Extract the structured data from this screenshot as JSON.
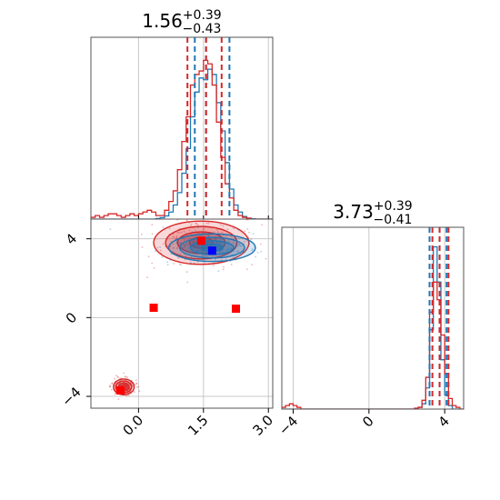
{
  "chart_data": [
    {
      "panel": "marginal-x",
      "type": "step-histogram",
      "title": {
        "main": "1.56",
        "sup": "+0.39",
        "sub": "−0.43"
      },
      "xlim": [
        -1.1,
        3.1
      ],
      "grid": true,
      "colors": {
        "blue": "#1f77b4",
        "red": "#d62728"
      },
      "bins": [
        -1.1,
        -1.0,
        -0.9,
        -0.8,
        -0.7,
        -0.6,
        -0.5,
        -0.4,
        -0.3,
        -0.2,
        -0.1,
        0.0,
        0.1,
        0.2,
        0.3,
        0.4,
        0.5,
        0.6,
        0.7,
        0.8,
        0.9,
        1.0,
        1.1,
        1.2,
        1.3,
        1.4,
        1.5,
        1.6,
        1.7,
        1.8,
        1.9,
        2.0,
        2.1,
        2.2,
        2.3,
        2.4,
        2.5,
        2.6,
        2.7,
        2.8,
        2.9,
        3.0,
        3.1
      ],
      "series": [
        {
          "color": "blue",
          "values": [
            0,
            0,
            0,
            0,
            0,
            0,
            0,
            0,
            0,
            0,
            0,
            0,
            0,
            0,
            0,
            0.003,
            0.008,
            0.018,
            0.04,
            0.08,
            0.15,
            0.26,
            0.4,
            0.58,
            0.72,
            0.8,
            0.79,
            0.85,
            0.82,
            0.66,
            0.5,
            0.32,
            0.17,
            0.08,
            0.04,
            0.015,
            0.005,
            0.002,
            0,
            0,
            0,
            0
          ]
        },
        {
          "color": "red",
          "values": [
            0.01,
            0.02,
            0.01,
            0.02,
            0.03,
            0.03,
            0.02,
            0.01,
            0.02,
            0.03,
            0.02,
            0.03,
            0.04,
            0.05,
            0.04,
            0.02,
            0.02,
            0.05,
            0.1,
            0.16,
            0.28,
            0.44,
            0.58,
            0.76,
            0.82,
            0.84,
            0.9,
            0.88,
            0.76,
            0.55,
            0.35,
            0.2,
            0.12,
            0.05,
            0.02,
            0.01,
            0.005,
            0,
            0,
            0,
            0,
            0
          ]
        }
      ],
      "quantiles": [
        {
          "color": "blue",
          "x": [
            1.3,
            1.56,
            2.1
          ]
        },
        {
          "color": "red",
          "x": [
            1.13,
            1.56,
            1.92
          ]
        }
      ]
    },
    {
      "panel": "joint",
      "type": "contour-scatter",
      "xlim": [
        -1.1,
        3.1
      ],
      "ylim": [
        -4.6,
        5.0
      ],
      "grid": true,
      "x_ticks": [
        "0.0",
        "1.5",
        "3.0"
      ],
      "x_tick_values": [
        0.0,
        1.5,
        3.0
      ],
      "y_ticks": [
        "−4",
        "0",
        "4"
      ],
      "y_tick_values": [
        -4,
        0,
        4
      ],
      "blobs": [
        {
          "color": "red",
          "cx": 1.45,
          "cy": 3.8,
          "sx": 0.55,
          "sy": 0.55
        },
        {
          "color": "blue",
          "cx": 1.7,
          "cy": 3.55,
          "sx": 0.5,
          "sy": 0.35
        },
        {
          "color": "red",
          "cx": -0.34,
          "cy": -3.52,
          "sx": 0.12,
          "sy": 0.2
        }
      ],
      "markers": [
        {
          "color": "red",
          "x": 0.35,
          "y": 0.5
        },
        {
          "color": "red",
          "x": 2.25,
          "y": 0.45
        },
        {
          "color": "red",
          "x": 1.45,
          "y": 3.9
        },
        {
          "color": "blue",
          "x": 1.7,
          "y": 3.4
        },
        {
          "color": "red",
          "x": -0.42,
          "y": -3.7
        }
      ]
    },
    {
      "panel": "marginal-y",
      "type": "step-histogram",
      "title": {
        "main": "3.73",
        "sup": "+0.39",
        "sub": "−0.41"
      },
      "xlim": [
        -4.6,
        5.0
      ],
      "grid": true,
      "x_ticks": [
        "−4",
        "0",
        "4"
      ],
      "x_tick_values": [
        -4,
        0,
        4
      ],
      "bins": [
        -4.6,
        -4.4,
        -4.2,
        -4.0,
        -3.8,
        -3.6,
        -3.4,
        -3.2,
        -3.0,
        -2.8,
        -2.6,
        -2.4,
        -2.2,
        -2.0,
        -1.8,
        -1.6,
        -1.4,
        -1.2,
        -1.0,
        -0.8,
        -0.6,
        -0.4,
        -0.2,
        0.0,
        0.2,
        0.4,
        0.6,
        0.8,
        1.0,
        1.2,
        1.4,
        1.6,
        1.8,
        2.0,
        2.2,
        2.4,
        2.6,
        2.8,
        3.0,
        3.2,
        3.4,
        3.6,
        3.8,
        4.0,
        4.2,
        4.4,
        4.6,
        4.8,
        5.0
      ],
      "series": [
        {
          "color": "blue",
          "values": [
            0,
            0,
            0,
            0,
            0,
            0,
            0,
            0,
            0,
            0,
            0,
            0,
            0,
            0,
            0,
            0,
            0,
            0,
            0,
            0,
            0,
            0,
            0,
            0,
            0,
            0,
            0,
            0,
            0,
            0,
            0,
            0,
            0,
            0,
            0,
            0,
            0.01,
            0.03,
            0.12,
            0.45,
            0.92,
            0.72,
            0.28,
            0.08,
            0.02,
            0,
            0,
            0
          ]
        },
        {
          "color": "red",
          "values": [
            0.01,
            0.02,
            0.03,
            0.02,
            0.01,
            0,
            0,
            0,
            0,
            0,
            0,
            0,
            0,
            0,
            0,
            0,
            0,
            0,
            0,
            0,
            0,
            0,
            0,
            0,
            0,
            0,
            0,
            0,
            0,
            0,
            0,
            0,
            0,
            0,
            0,
            0.005,
            0.01,
            0.05,
            0.18,
            0.55,
            0.72,
            0.62,
            0.42,
            0.2,
            0.06,
            0.02,
            0.01,
            0
          ]
        }
      ],
      "quantiles": [
        {
          "color": "blue",
          "x": [
            3.2,
            3.73,
            4.1
          ]
        },
        {
          "color": "red",
          "x": [
            3.35,
            3.73,
            4.2
          ]
        }
      ]
    }
  ]
}
